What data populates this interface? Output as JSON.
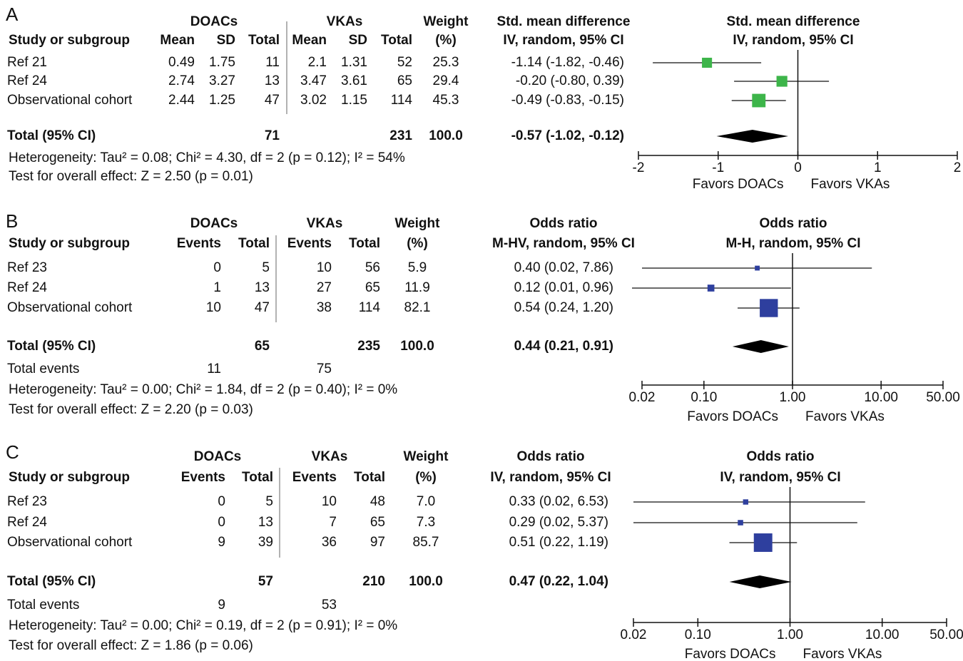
{
  "chart_data": [
    {
      "type": "forest",
      "panel": "A",
      "group_headers": [
        "DOACs",
        "VKAs"
      ],
      "columns": [
        "Study or subgroup",
        "Mean",
        "SD",
        "Total",
        "Mean",
        "SD",
        "Total"
      ],
      "weight_header": [
        "Weight",
        "(%)"
      ],
      "effect_header": [
        "Std. mean difference",
        "IV, random, 95% CI"
      ],
      "plot_header": [
        "Std. mean difference",
        "IV, random, 95% CI"
      ],
      "color": "#3db54a",
      "rows": [
        {
          "name": "Ref 21",
          "cells": [
            "0.49",
            "1.75",
            "11",
            "2.1",
            "1.31",
            "52"
          ],
          "weight": 25.3,
          "effect": {
            "value": -1.14,
            "low": -1.82,
            "high": -0.46,
            "label": "-1.14 (-1.82, -0.46)"
          }
        },
        {
          "name": "Ref 24",
          "cells": [
            "2.74",
            "3.27",
            "13",
            "3.47",
            "3.61",
            "65"
          ],
          "weight": 29.4,
          "effect": {
            "value": -0.2,
            "low": -0.8,
            "high": 0.39,
            "label": "-0.20 (-0.80, 0.39)"
          }
        },
        {
          "name": "Observational cohort",
          "cells": [
            "2.44",
            "1.25",
            "47",
            "3.02",
            "1.15",
            "114"
          ],
          "weight": 45.3,
          "effect": {
            "value": -0.49,
            "low": -0.83,
            "high": -0.15,
            "label": "-0.49 (-0.83, -0.15)"
          }
        }
      ],
      "total": {
        "name": "Total (95% CI)",
        "cells": [
          null,
          null,
          "71",
          null,
          null,
          "231"
        ],
        "weight": {
          "value": 100,
          "label": "100.0"
        },
        "effect": {
          "value": -0.57,
          "low": -1.02,
          "high": -0.12,
          "label": "-0.57 (-1.02, -0.12)"
        }
      },
      "heterogeneity": "Heterogeneity: Tau² = 0.08; Chi² = 4.30, df = 2 (p = 0.12); I² = 54%",
      "overall_effect": "Test for overall effect: Z = 2.50 (p = 0.01)",
      "log_scale": false,
      "null_value": 0,
      "xlim": [
        -2,
        2
      ],
      "xticks": [
        -2,
        -1,
        0,
        1,
        2
      ],
      "favors": [
        "Favors DOACs",
        "Favors VKAs"
      ]
    },
    {
      "type": "forest",
      "panel": "B",
      "group_headers": [
        "DOACs",
        "VKAs"
      ],
      "columns": [
        "Study or subgroup",
        "Events",
        "Total",
        "Events",
        "Total"
      ],
      "weight_header": [
        "Weight",
        "(%)"
      ],
      "effect_header": [
        "Odds ratio",
        "M-HV, random, 95% CI"
      ],
      "plot_header": [
        "Odds ratio",
        "M-H, random, 95% CI"
      ],
      "color": "#2e3f9e",
      "rows": [
        {
          "name": "Ref 23",
          "cells": [
            "0",
            "5",
            "10",
            "56"
          ],
          "weight": 5.9,
          "effect": {
            "value": 0.4,
            "low": 0.02,
            "high": 7.86,
            "label": "0.40 (0.02, 7.86)"
          }
        },
        {
          "name": "Ref 24",
          "cells": [
            "1",
            "13",
            "27",
            "65"
          ],
          "weight": 11.9,
          "effect": {
            "value": 0.12,
            "low": 0.01,
            "high": 0.96,
            "label": "0.12 (0.01, 0.96)"
          }
        },
        {
          "name": "Observational cohort",
          "cells": [
            "10",
            "47",
            "38",
            "114"
          ],
          "weight": 82.1,
          "effect": {
            "value": 0.54,
            "low": 0.24,
            "high": 1.2,
            "label": "0.54 (0.24, 1.20)"
          }
        }
      ],
      "total": {
        "name": "Total (95% CI)",
        "cells": [
          null,
          "65",
          null,
          "235"
        ],
        "weight": {
          "value": 100,
          "label": "100.0"
        },
        "effect": {
          "value": 0.44,
          "low": 0.21,
          "high": 0.91,
          "label": "0.44 (0.21, 0.91)"
        }
      },
      "total_events": {
        "name": "Total events",
        "cells": [
          "11",
          null,
          "75",
          null
        ]
      },
      "heterogeneity": "Heterogeneity: Tau² = 0.00; Chi² = 1.84, df = 2 (p = 0.40); I² = 0%",
      "overall_effect": "Test for overall effect: Z = 2.20 (p = 0.03)",
      "log_scale": true,
      "null_value": 1,
      "xlim": [
        0.02,
        50
      ],
      "xticks": [
        {
          "value": 0.02,
          "label": "0.02"
        },
        {
          "value": 0.1,
          "label": "0.10"
        },
        {
          "value": 1,
          "label": "1.00"
        },
        {
          "value": 10,
          "label": "10.00"
        },
        {
          "value": 50,
          "label": "50.00"
        }
      ],
      "favors": [
        "Favors DOACs",
        "Favors VKAs"
      ]
    },
    {
      "type": "forest",
      "panel": "C",
      "group_headers": [
        "DOACs",
        "VKAs"
      ],
      "columns": [
        "Study or subgroup",
        "Events",
        "Total",
        "Events",
        "Total"
      ],
      "weight_header": [
        "Weight",
        "(%)"
      ],
      "effect_header": [
        "Odds ratio",
        "IV, random, 95% CI"
      ],
      "plot_header": [
        "Odds ratio",
        "IV, random, 95% CI"
      ],
      "color": "#2e3f9e",
      "rows": [
        {
          "name": "Ref 23",
          "cells": [
            "0",
            "5",
            "10",
            "48"
          ],
          "weight": {
            "value": 7,
            "label": "7.0"
          },
          "effect": {
            "value": 0.33,
            "low": 0.02,
            "high": 6.53,
            "label": "0.33 (0.02, 6.53)"
          }
        },
        {
          "name": "Ref 24",
          "cells": [
            "0",
            "13",
            "7",
            "65"
          ],
          "weight": 7.3,
          "effect": {
            "value": 0.29,
            "low": 0.02,
            "high": 5.37,
            "label": "0.29 (0.02, 5.37)"
          }
        },
        {
          "name": "Observational cohort",
          "cells": [
            "9",
            "39",
            "36",
            "97"
          ],
          "weight": 85.7,
          "effect": {
            "value": 0.51,
            "low": 0.22,
            "high": 1.19,
            "label": "0.51 (0.22, 1.19)"
          }
        }
      ],
      "total": {
        "name": "Total (95% CI)",
        "cells": [
          null,
          "57",
          null,
          "210"
        ],
        "weight": {
          "value": 100,
          "label": "100.0"
        },
        "effect": {
          "value": 0.47,
          "low": 0.22,
          "high": 1.04,
          "label": "0.47 (0.22, 1.04)"
        }
      },
      "total_events": {
        "name": "Total events",
        "cells": [
          "9",
          null,
          "53",
          null
        ]
      },
      "heterogeneity": "Heterogeneity: Tau² = 0.00; Chi² = 0.19, df = 2 (p = 0.91); I² = 0%",
      "overall_effect": "Test for overall effect: Z = 1.86 (p = 0.06)",
      "log_scale": true,
      "null_value": 1,
      "xlim": [
        0.02,
        50
      ],
      "xticks": [
        {
          "value": 0.02,
          "label": "0.02"
        },
        {
          "value": 0.1,
          "label": "0.10"
        },
        {
          "value": 1,
          "label": "1.00"
        },
        {
          "value": 10,
          "label": "10.00"
        },
        {
          "value": 50,
          "label": "50.00"
        }
      ],
      "favors": [
        "Favors DOACs",
        "Favors VKAs"
      ]
    }
  ]
}
